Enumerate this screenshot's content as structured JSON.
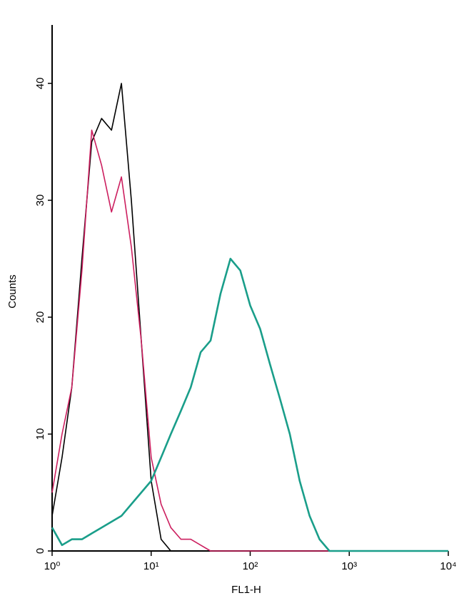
{
  "chart_data": {
    "type": "line",
    "x_label": "FL1-H",
    "y_label": "Counts",
    "xscale": "log",
    "x": [
      1,
      1.26,
      1.58,
      2,
      2.51,
      3.16,
      3.98,
      5.01,
      6.31,
      7.94,
      10,
      12.6,
      15.8,
      20,
      25.1,
      31.6,
      39.8,
      50.1,
      63.1,
      79.4,
      100,
      126,
      158,
      200,
      251,
      316,
      398,
      501,
      631,
      794,
      1000,
      10000
    ],
    "series": [
      {
        "color": "#000000",
        "values": [
          3,
          8,
          14,
          25,
          35,
          37,
          36,
          40,
          30,
          18,
          6,
          1,
          0,
          0,
          0,
          0,
          0,
          0,
          0,
          0,
          0,
          0,
          0,
          0,
          0,
          0,
          0,
          0,
          0,
          0,
          0,
          0
        ]
      },
      {
        "color": "#cc1f5f",
        "values": [
          5,
          10,
          14,
          24,
          36,
          33,
          29,
          32,
          26,
          18,
          8,
          4,
          2,
          1,
          1,
          0.5,
          0,
          0,
          0,
          0,
          0,
          0,
          0,
          0,
          0,
          0,
          0,
          0,
          0,
          0,
          0,
          0
        ]
      },
      {
        "color": "#1a9e8a",
        "values": [
          2,
          0.5,
          1,
          1,
          1.5,
          2,
          2.5,
          3,
          4,
          5,
          6,
          8,
          10,
          12,
          14,
          17,
          18,
          22,
          25,
          24,
          21,
          19,
          16,
          13,
          10,
          6,
          3,
          1,
          0,
          0,
          0,
          0
        ]
      }
    ],
    "xlim": [
      1,
      10000
    ],
    "xticks": [
      {
        "value": 1,
        "label": "10⁰"
      },
      {
        "value": 10,
        "label": "10¹"
      },
      {
        "value": 100,
        "label": "10²"
      },
      {
        "value": 1000,
        "label": "10³"
      },
      {
        "value": 10000,
        "label": "10⁴"
      }
    ],
    "ylim": [
      0,
      45
    ],
    "yticks": [
      0,
      10,
      20,
      30,
      40
    ]
  }
}
